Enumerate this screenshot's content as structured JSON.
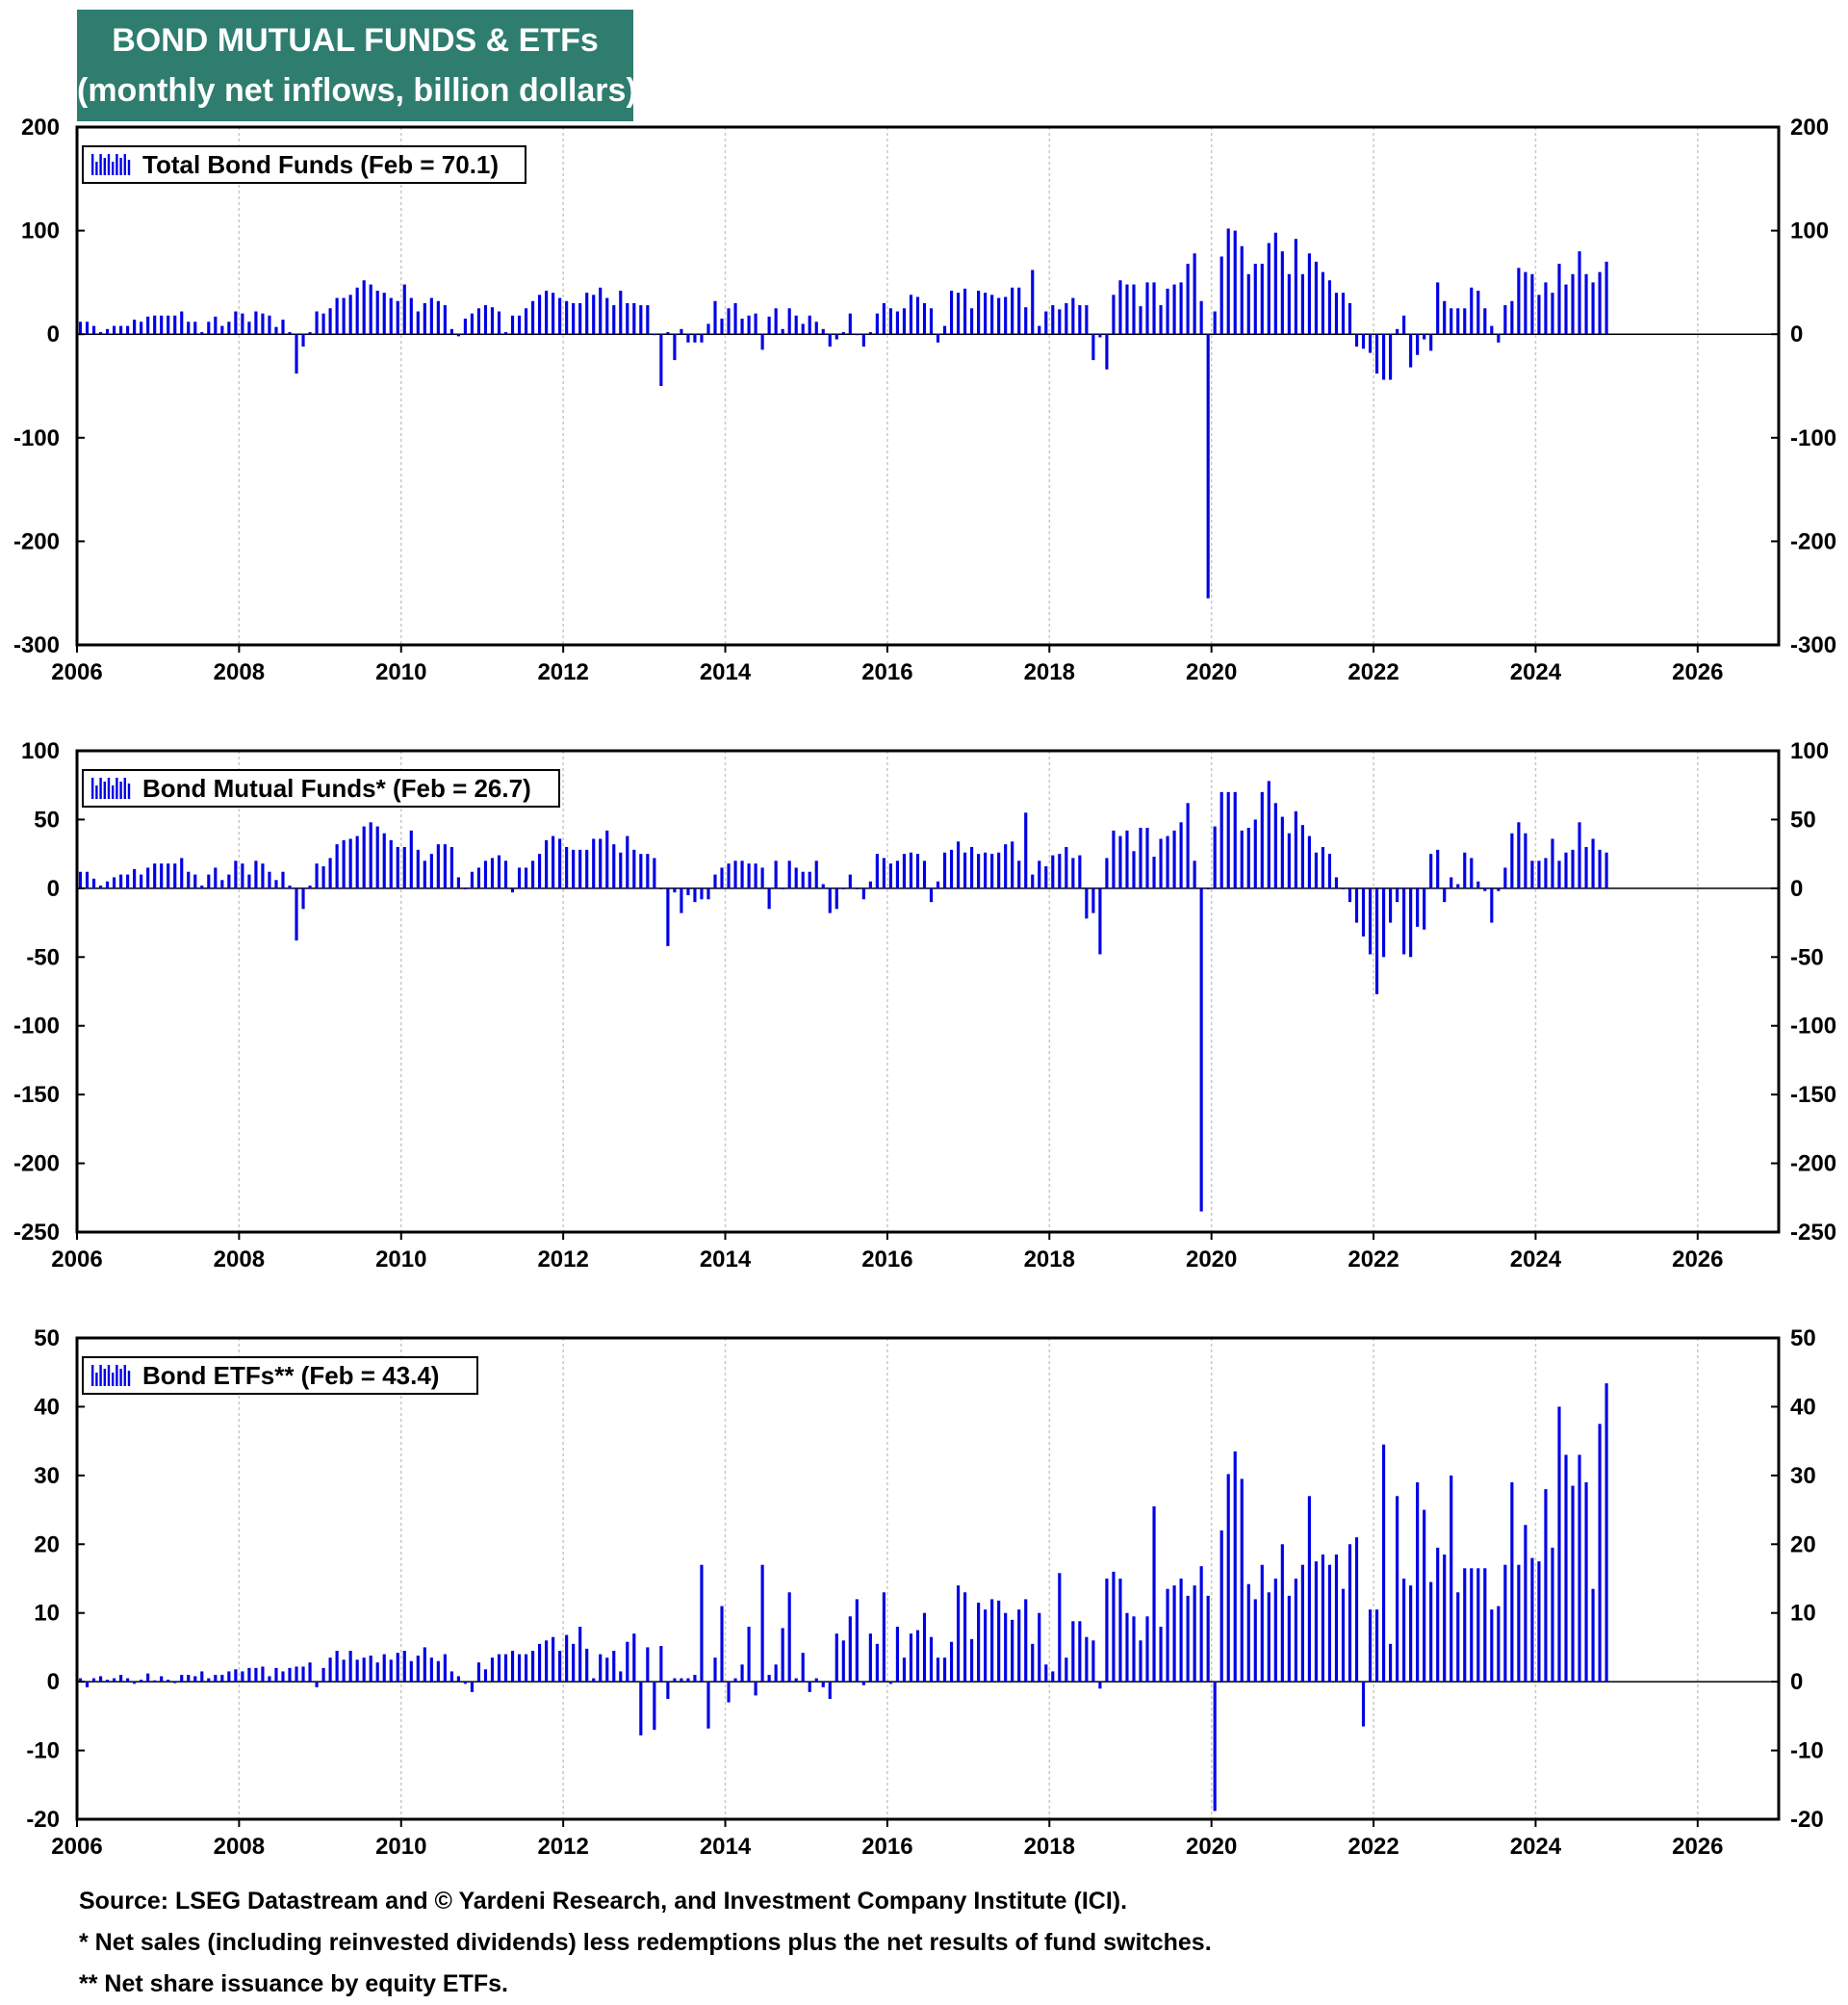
{
  "header": {
    "title_line1": "BOND MUTUAL FUNDS & ETFs",
    "title_line2": "(monthly net inflows, billion dollars)"
  },
  "colors": {
    "bars": "#0000e6",
    "title_bg": "#2e7d6f",
    "grid": "#c8c8c8",
    "frame": "#000000"
  },
  "chart_data": [
    {
      "type": "bar",
      "legend": "Total Bond Funds (Feb = 70.1)",
      "ylim": [
        -300,
        200
      ],
      "yticks": [
        200,
        100,
        0,
        -100,
        -200,
        -300
      ],
      "xlim": [
        2006,
        2027
      ],
      "xticks": [
        2006,
        2008,
        2010,
        2012,
        2014,
        2016,
        2018,
        2020,
        2022,
        2024,
        2026
      ],
      "grid": "vertical",
      "legend_position": "top-left",
      "start": "2006-01",
      "values": [
        12,
        12,
        8,
        2,
        5,
        8,
        8,
        8,
        14,
        12,
        17,
        18,
        18,
        18,
        18,
        22,
        12,
        12,
        2,
        12,
        17,
        8,
        12,
        22,
        20,
        12,
        22,
        20,
        18,
        7,
        14,
        2,
        -38,
        -12,
        2,
        22,
        20,
        25,
        35,
        35,
        38,
        45,
        52,
        48,
        42,
        40,
        35,
        32,
        48,
        35,
        22,
        30,
        35,
        32,
        28,
        5,
        -2,
        15,
        20,
        25,
        28,
        26,
        22,
        2,
        18,
        18,
        25,
        32,
        38,
        42,
        40,
        35,
        32,
        30,
        30,
        40,
        38,
        45,
        35,
        28,
        42,
        30,
        30,
        28,
        28,
        0,
        -50,
        2,
        -25,
        5,
        -8,
        -8,
        -8,
        10,
        32,
        15,
        25,
        30,
        15,
        18,
        20,
        -15,
        17,
        25,
        5,
        25,
        18,
        10,
        18,
        12,
        5,
        -12,
        -5,
        2,
        20,
        0,
        -12,
        2,
        20,
        30,
        25,
        22,
        25,
        38,
        36,
        30,
        25,
        -8,
        8,
        42,
        40,
        44,
        25,
        42,
        40,
        38,
        35,
        36,
        45,
        45,
        26,
        62,
        8,
        22,
        28,
        24,
        30,
        35,
        28,
        28,
        -25,
        -3,
        -34,
        38,
        52,
        48,
        48,
        27,
        50,
        50,
        28,
        44,
        48,
        50,
        68,
        78,
        32,
        -255,
        22,
        75,
        102,
        100,
        85,
        58,
        68,
        68,
        88,
        98,
        80,
        58,
        92,
        58,
        78,
        70,
        60,
        52,
        40,
        40,
        30,
        -12,
        -14,
        -18,
        -38,
        -44,
        -44,
        5,
        18,
        -32,
        -20,
        -5,
        -16,
        50,
        32,
        25,
        25,
        25,
        45,
        42,
        25,
        8,
        -8,
        28,
        32,
        64,
        60,
        58,
        38,
        50,
        40,
        68,
        48,
        58,
        80,
        58,
        50,
        60,
        70
      ]
    },
    {
      "type": "bar",
      "legend": "Bond Mutual Funds* (Feb = 26.7)",
      "ylim": [
        -250,
        100
      ],
      "yticks": [
        100,
        50,
        0,
        -50,
        -100,
        -150,
        -200,
        -250
      ],
      "xlim": [
        2006,
        2027
      ],
      "xticks": [
        2006,
        2008,
        2010,
        2012,
        2014,
        2016,
        2018,
        2020,
        2022,
        2024,
        2026
      ],
      "grid": "vertical",
      "legend_position": "top-left",
      "start": "2006-01",
      "values": [
        12,
        12,
        7,
        2,
        5,
        8,
        10,
        10,
        14,
        10,
        15,
        18,
        18,
        18,
        18,
        22,
        12,
        10,
        2,
        10,
        15,
        6,
        10,
        20,
        18,
        10,
        20,
        18,
        12,
        6,
        12,
        2,
        -38,
        -15,
        2,
        18,
        16,
        22,
        32,
        35,
        36,
        38,
        45,
        48,
        45,
        40,
        35,
        30,
        30,
        42,
        28,
        20,
        25,
        32,
        32,
        30,
        8,
        0,
        12,
        15,
        20,
        22,
        24,
        20,
        -3,
        15,
        15,
        20,
        25,
        35,
        38,
        36,
        30,
        28,
        28,
        28,
        36,
        36,
        42,
        32,
        26,
        38,
        28,
        25,
        25,
        22,
        0,
        -42,
        -3,
        -18,
        -5,
        -10,
        -8,
        -8,
        10,
        15,
        18,
        20,
        20,
        18,
        18,
        15,
        -15,
        20,
        0,
        20,
        15,
        12,
        12,
        20,
        3,
        -18,
        -15,
        0,
        10,
        0,
        -8,
        5,
        25,
        22,
        18,
        20,
        25,
        26,
        25,
        20,
        -10,
        5,
        26,
        28,
        34,
        26,
        30,
        25,
        26,
        25,
        26,
        32,
        34,
        20,
        55,
        10,
        20,
        16,
        24,
        25,
        30,
        22,
        24,
        -22,
        -18,
        -48,
        22,
        42,
        38,
        42,
        27,
        44,
        44,
        23,
        36,
        38,
        42,
        48,
        62,
        20,
        -235,
        0,
        45,
        70,
        70,
        70,
        42,
        44,
        50,
        70,
        78,
        62,
        52,
        40,
        56,
        46,
        38,
        26,
        30,
        25,
        8,
        0,
        -10,
        -25,
        -35,
        -48,
        -77,
        -50,
        -25,
        -10,
        -48,
        -50,
        -28,
        -30,
        25,
        28,
        -10,
        8,
        3,
        26,
        22,
        5,
        -2,
        -25,
        -2,
        15,
        40,
        48,
        40,
        20,
        20,
        22,
        36,
        20,
        26,
        28,
        48,
        30,
        36,
        28,
        26
      ]
    },
    {
      "type": "bar",
      "legend": "Bond ETFs**  (Feb = 43.4)",
      "ylim": [
        -20,
        50
      ],
      "yticks": [
        50,
        40,
        30,
        20,
        10,
        0,
        -10,
        -20
      ],
      "xlim": [
        2006,
        2027
      ],
      "xticks": [
        2006,
        2008,
        2010,
        2012,
        2014,
        2016,
        2018,
        2020,
        2022,
        2024,
        2026
      ],
      "grid": "vertical",
      "legend_position": "top-left",
      "start": "2006-01",
      "values": [
        0.5,
        -0.8,
        0.5,
        0.8,
        0.3,
        0.5,
        1.0,
        0.5,
        -0.3,
        0.3,
        1.2,
        0.2,
        0.8,
        0.3,
        -0.2,
        1.0,
        1.0,
        0.8,
        1.5,
        0.5,
        1.0,
        1.0,
        1.5,
        1.8,
        1.5,
        2.0,
        2.0,
        2.2,
        0.8,
        2.0,
        1.5,
        2.0,
        2.2,
        2.2,
        2.8,
        -0.8,
        2.0,
        3.5,
        4.5,
        3.2,
        4.5,
        3.2,
        3.5,
        3.8,
        2.8,
        4.0,
        3.2,
        4.2,
        4.5,
        3.0,
        3.8,
        5.0,
        3.5,
        3.0,
        4.0,
        1.5,
        0.8,
        -0.3,
        -1.5,
        2.8,
        1.8,
        3.5,
        4.0,
        4.0,
        4.5,
        4.0,
        4.0,
        4.5,
        5.5,
        6.0,
        6.5,
        4.5,
        6.8,
        5.5,
        8.0,
        4.8,
        0.5,
        4.0,
        3.5,
        4.5,
        1.5,
        5.8,
        7.0,
        -7.8,
        5.0,
        -7.0,
        5.2,
        -2.5,
        0.5,
        0.5,
        0.5,
        1.0,
        17.0,
        -6.8,
        3.5,
        11.0,
        -3.0,
        0.5,
        2.5,
        8.0,
        -2.0,
        17.0,
        1.0,
        2.5,
        7.8,
        13.0,
        0.5,
        4.2,
        -1.5,
        0.5,
        -0.8,
        -2.5,
        7.0,
        6.0,
        9.5,
        12.0,
        -0.5,
        7.0,
        5.5,
        13.0,
        -0.3,
        8.0,
        3.5,
        7.0,
        7.5,
        10.0,
        6.5,
        3.5,
        3.5,
        5.8,
        14.0,
        13.0,
        6.2,
        11.5,
        10.5,
        12.0,
        11.8,
        10.0,
        9.0,
        10.5,
        12.0,
        5.5,
        10.0,
        2.5,
        1.5,
        15.8,
        3.5,
        8.8,
        8.8,
        6.5,
        6.0,
        -1.0,
        15.0,
        16.0,
        15.0,
        10.0,
        9.5,
        6.0,
        9.5,
        25.5,
        8.0,
        13.5,
        14.0,
        15.0,
        12.5,
        14.0,
        16.8,
        12.5,
        -18.8,
        22.0,
        30.2,
        33.5,
        29.5,
        14.2,
        12.0,
        17.0,
        13.0,
        15.0,
        20.0,
        12.5,
        15.0,
        17.0,
        27.0,
        17.5,
        18.5,
        17.0,
        18.5,
        13.5,
        20.0,
        21.0,
        -6.5,
        10.5,
        10.5,
        34.5,
        5.5,
        27.0,
        15.0,
        14.0,
        29.0,
        25.0,
        14.5,
        19.5,
        18.5,
        30.0,
        13.0,
        16.5,
        16.5,
        16.5,
        16.5,
        10.5,
        11.0,
        17.0,
        29.0,
        17.0,
        22.8,
        18.0,
        17.5,
        28.0,
        19.5,
        40.0,
        33.0,
        28.5,
        33.0,
        29.0,
        13.5,
        37.5,
        43.4
      ]
    }
  ],
  "footer": {
    "source": "Source: LSEG Datastream and © Yardeni Research, and Investment Company Institute (ICI).",
    "note1": "* Net sales (including reinvested dividends) less redemptions plus the net results of fund switches.",
    "note2": "** Net share issuance by equity ETFs."
  }
}
